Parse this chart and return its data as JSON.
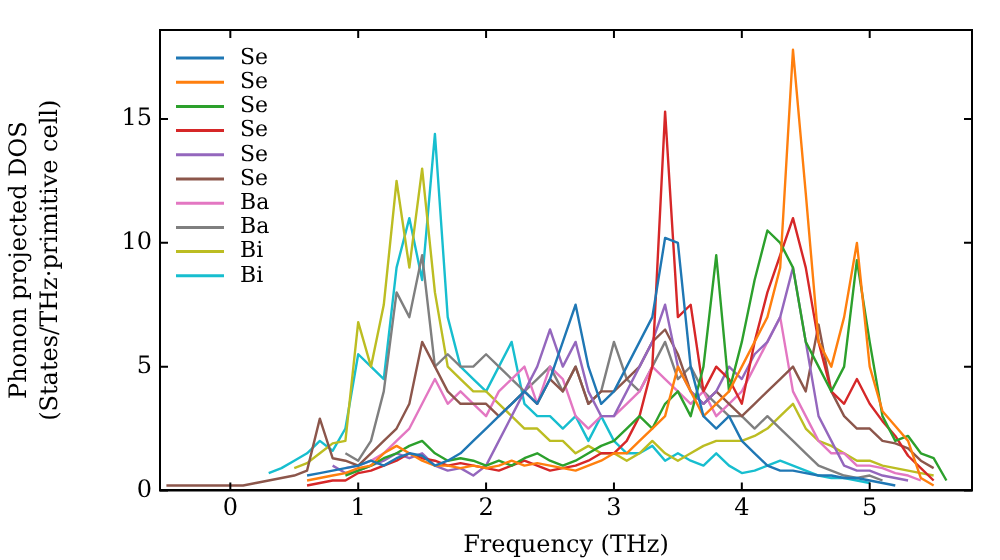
{
  "chart_data": {
    "type": "line",
    "xlabel": "Frequency (THz)",
    "ylabel": "Phonon projected DOS\n(States/THz·primitive cell)",
    "x": [
      -0.5,
      -0.4,
      -0.3,
      -0.2,
      -0.1,
      0,
      0.1,
      0.2,
      0.3,
      0.4,
      0.5,
      0.6,
      0.7,
      0.8,
      0.9,
      1.0,
      1.1,
      1.2,
      1.3,
      1.4,
      1.5,
      1.6,
      1.7,
      1.8,
      1.9,
      2.0,
      2.1,
      2.2,
      2.3,
      2.4,
      2.5,
      2.6,
      2.7,
      2.8,
      2.9,
      3.0,
      3.1,
      3.2,
      3.3,
      3.4,
      3.5,
      3.6,
      3.7,
      3.8,
      3.9,
      4.0,
      4.1,
      4.2,
      4.3,
      4.4,
      4.5,
      4.6,
      4.7,
      4.8,
      4.9,
      5.0,
      5.1,
      5.2,
      5.3,
      5.4,
      5.5,
      5.6
    ],
    "xlim": [
      -0.55,
      5.8
    ],
    "xticks": [
      0,
      1,
      2,
      3,
      4,
      5
    ],
    "ylim": [
      0,
      18.6
    ],
    "yticks": [
      0,
      5,
      10,
      15
    ],
    "grid": false,
    "legend": "top left",
    "marker": "none",
    "line_style": "solid",
    "series": [
      {
        "name": "Se",
        "color": "#1f77b4",
        "values": [
          null,
          null,
          null,
          null,
          null,
          null,
          null,
          null,
          null,
          null,
          null,
          0.6,
          0.7,
          0.8,
          0.9,
          1.0,
          1.2,
          1.0,
          1.3,
          1.5,
          1.4,
          1.0,
          1.2,
          1.5,
          2.0,
          2.5,
          3.0,
          3.5,
          4.0,
          3.5,
          4.5,
          6.0,
          7.5,
          5.0,
          3.5,
          4.0,
          5.0,
          6.0,
          7.0,
          10.2,
          10.0,
          5.0,
          3.0,
          2.5,
          3.0,
          2.0,
          1.5,
          1.0,
          0.8,
          0.8,
          0.7,
          0.6,
          0.6,
          0.5,
          0.5,
          0.4,
          0.3,
          0.2,
          null,
          null,
          null,
          null
        ]
      },
      {
        "name": "Se",
        "color": "#ff7f0e",
        "values": [
          null,
          null,
          null,
          null,
          null,
          null,
          null,
          null,
          null,
          null,
          null,
          0.4,
          0.5,
          0.6,
          0.7,
          0.9,
          1.0,
          1.5,
          1.8,
          1.5,
          1.2,
          1.0,
          1.0,
          0.9,
          1.0,
          0.9,
          1.0,
          1.2,
          1.0,
          1.1,
          1.0,
          0.9,
          0.8,
          1.0,
          1.2,
          1.5,
          1.5,
          2.0,
          2.5,
          3.0,
          5.0,
          4.0,
          3.0,
          3.5,
          4.0,
          5.0,
          6.0,
          7.0,
          9.0,
          17.8,
          12.0,
          6.0,
          5.0,
          7.0,
          10.0,
          5.0,
          3.2,
          2.6,
          2.0,
          0.5,
          0.2,
          null
        ]
      },
      {
        "name": "Se",
        "color": "#2ca02c",
        "values": [
          null,
          null,
          null,
          null,
          null,
          null,
          null,
          null,
          null,
          null,
          null,
          null,
          null,
          null,
          0.6,
          0.8,
          1.0,
          1.3,
          1.5,
          1.8,
          2.0,
          1.5,
          1.2,
          1.3,
          1.2,
          1.0,
          1.2,
          1.0,
          1.3,
          1.5,
          1.2,
          1.0,
          1.2,
          1.5,
          1.8,
          2.0,
          2.5,
          3.0,
          2.5,
          3.5,
          4.0,
          3.0,
          5.0,
          9.5,
          4.0,
          6.0,
          8.5,
          10.5,
          10.0,
          9.0,
          6.0,
          5.0,
          4.0,
          5.0,
          9.3,
          6.0,
          3.0,
          2.0,
          2.2,
          1.5,
          1.3,
          0.4
        ]
      },
      {
        "name": "Se",
        "color": "#d62728",
        "values": [
          null,
          null,
          null,
          null,
          null,
          null,
          null,
          null,
          null,
          null,
          null,
          0.2,
          0.3,
          0.4,
          0.4,
          0.7,
          0.8,
          1.0,
          1.2,
          1.5,
          1.3,
          1.2,
          1.0,
          1.1,
          1.0,
          0.9,
          0.8,
          1.0,
          1.2,
          1.0,
          0.8,
          0.9,
          1.0,
          1.2,
          1.5,
          1.5,
          2.0,
          3.0,
          5.0,
          15.3,
          7.0,
          7.5,
          4.0,
          5.0,
          4.5,
          3.5,
          6.0,
          8.0,
          9.5,
          11.0,
          9.0,
          6.0,
          4.0,
          3.5,
          4.5,
          3.5,
          2.8,
          2.2,
          1.4,
          0.9,
          0.4,
          null
        ]
      },
      {
        "name": "Se",
        "color": "#9467bd",
        "values": [
          null,
          null,
          null,
          null,
          null,
          null,
          null,
          null,
          null,
          null,
          null,
          null,
          null,
          1.0,
          0.7,
          0.8,
          1.0,
          1.2,
          1.5,
          1.3,
          1.5,
          1.0,
          0.8,
          0.9,
          0.6,
          1.0,
          2.0,
          3.0,
          4.0,
          5.0,
          6.5,
          5.0,
          6.0,
          4.0,
          3.0,
          3.0,
          4.0,
          5.0,
          6.0,
          7.5,
          5.0,
          4.0,
          3.5,
          4.0,
          5.0,
          4.5,
          5.5,
          6.0,
          7.0,
          9.0,
          6.0,
          3.0,
          2.0,
          1.0,
          0.8,
          0.8,
          0.6,
          0.5,
          0.4,
          null,
          null,
          null
        ]
      },
      {
        "name": "Se",
        "color": "#8c564b",
        "values": [
          0.2,
          0.2,
          0.2,
          0.2,
          0.2,
          0.2,
          0.2,
          0.3,
          0.4,
          0.5,
          0.6,
          0.8,
          2.9,
          1.3,
          1.2,
          1.0,
          1.5,
          2.0,
          2.5,
          3.5,
          6.0,
          5.0,
          4.0,
          3.5,
          3.5,
          3.5,
          3.0,
          3.5,
          4.0,
          3.5,
          4.5,
          4.0,
          5.0,
          3.5,
          4.0,
          4.0,
          4.5,
          5.0,
          6.0,
          6.5,
          5.5,
          4.0,
          3.5,
          4.0,
          3.5,
          3.0,
          3.5,
          4.0,
          4.5,
          5.0,
          4.0,
          6.7,
          4.0,
          3.0,
          2.5,
          2.5,
          2.0,
          1.9,
          1.7,
          1.2,
          0.9,
          null
        ]
      },
      {
        "name": "Ba",
        "color": "#e377c2",
        "values": [
          null,
          null,
          null,
          null,
          null,
          null,
          null,
          null,
          null,
          null,
          null,
          null,
          null,
          null,
          0.9,
          1.0,
          1.2,
          1.5,
          2.0,
          2.5,
          3.5,
          4.5,
          3.5,
          4.0,
          3.5,
          3.0,
          4.0,
          4.5,
          5.0,
          3.5,
          5.0,
          4.5,
          3.0,
          2.5,
          3.0,
          3.0,
          3.5,
          4.0,
          5.0,
          4.5,
          4.0,
          3.5,
          4.0,
          3.0,
          3.5,
          4.0,
          5.0,
          6.0,
          7.0,
          4.0,
          3.0,
          2.0,
          1.5,
          1.5,
          1.0,
          1.0,
          0.9,
          0.7,
          0.6,
          0.4,
          null,
          null
        ]
      },
      {
        "name": "Ba",
        "color": "#7f7f7f",
        "values": [
          null,
          null,
          null,
          null,
          null,
          null,
          null,
          null,
          null,
          null,
          null,
          null,
          null,
          null,
          1.5,
          1.2,
          2.0,
          4.0,
          8.0,
          7.0,
          9.5,
          5.0,
          5.5,
          5.0,
          5.0,
          5.5,
          5.0,
          4.5,
          4.0,
          4.5,
          5.0,
          4.0,
          5.0,
          3.5,
          4.0,
          6.0,
          4.5,
          4.0,
          5.0,
          6.0,
          4.5,
          5.0,
          4.0,
          3.5,
          3.0,
          3.0,
          2.5,
          3.0,
          2.5,
          2.0,
          1.5,
          1.0,
          0.8,
          0.6,
          0.5,
          0.6,
          0.4,
          null,
          null,
          null,
          null,
          null
        ]
      },
      {
        "name": "Bi",
        "color": "#bcbd22",
        "values": [
          null,
          null,
          null,
          null,
          null,
          null,
          null,
          null,
          null,
          null,
          0.9,
          1.1,
          1.5,
          1.9,
          2.0,
          6.8,
          5.0,
          7.5,
          12.5,
          9.0,
          13.0,
          8.0,
          5.0,
          4.5,
          4.0,
          4.0,
          3.5,
          3.0,
          2.5,
          2.5,
          2.0,
          2.0,
          1.5,
          1.8,
          1.5,
          1.5,
          1.2,
          1.5,
          2.0,
          1.5,
          1.2,
          1.5,
          1.8,
          2.0,
          2.0,
          2.0,
          2.2,
          2.5,
          3.0,
          3.5,
          2.5,
          2.0,
          1.8,
          1.5,
          1.2,
          1.2,
          1.0,
          0.9,
          0.8,
          0.7,
          0.6,
          null
        ]
      },
      {
        "name": "Bi",
        "color": "#17becf",
        "values": [
          null,
          null,
          null,
          null,
          null,
          null,
          null,
          null,
          0.7,
          0.9,
          1.2,
          1.5,
          2.0,
          1.6,
          2.5,
          5.5,
          5.0,
          4.5,
          9.0,
          11.0,
          8.5,
          14.4,
          7.0,
          5.0,
          4.5,
          4.0,
          5.0,
          6.0,
          3.5,
          3.0,
          3.0,
          2.5,
          3.0,
          2.0,
          3.0,
          2.0,
          1.5,
          1.5,
          1.8,
          1.2,
          1.5,
          1.2,
          1.0,
          1.5,
          1.0,
          0.7,
          0.8,
          1.0,
          1.2,
          1.0,
          0.8,
          0.6,
          0.5,
          0.5,
          0.4,
          0.3,
          null,
          null,
          null,
          null,
          null,
          null
        ]
      }
    ]
  }
}
